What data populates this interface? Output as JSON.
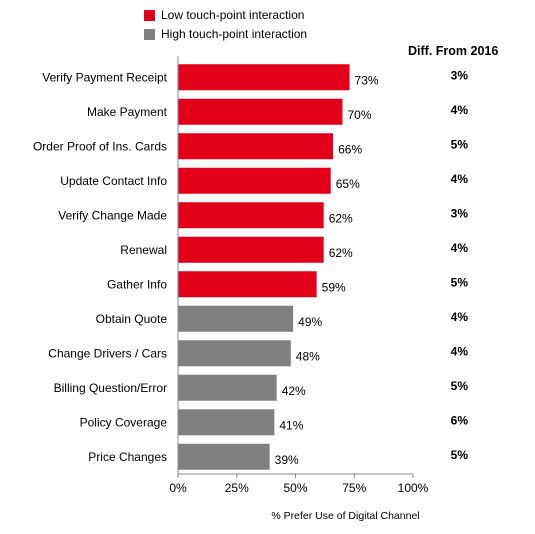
{
  "legend": [
    {
      "label": "Low touch-point interaction",
      "color": "#e3001b"
    },
    {
      "label": "High touch-point interaction",
      "color": "#808080"
    }
  ],
  "diff_header": "Diff. From 2016",
  "chart_data": {
    "type": "bar",
    "orientation": "horizontal",
    "categories": [
      "Verify Payment Receipt",
      "Make Payment",
      "Order Proof of Ins. Cards",
      "Update Contact Info",
      "Verify Change Made",
      "Renewal",
      "Gather Info",
      "Obtain Quote",
      "Change Drivers / Cars",
      "Billing Question/Error",
      "Policy Coverage",
      "Price Changes"
    ],
    "values": [
      73,
      70,
      66,
      65,
      62,
      62,
      59,
      49,
      48,
      42,
      41,
      39
    ],
    "value_labels": [
      "73%",
      "70%",
      "66%",
      "65%",
      "62%",
      "62%",
      "59%",
      "49%",
      "48%",
      "42%",
      "41%",
      "39%"
    ],
    "groups": [
      "Low touch-point interaction",
      "Low touch-point interaction",
      "Low touch-point interaction",
      "Low touch-point interaction",
      "Low touch-point interaction",
      "Low touch-point interaction",
      "Low touch-point interaction",
      "High touch-point interaction",
      "High touch-point interaction",
      "High touch-point interaction",
      "High touch-point interaction",
      "High touch-point interaction"
    ],
    "diff_from_2016": [
      "3%",
      "4%",
      "5%",
      "4%",
      "3%",
      "4%",
      "5%",
      "4%",
      "4%",
      "5%",
      "6%",
      "5%"
    ],
    "xlim": [
      0,
      100
    ],
    "xticks": [
      "0%",
      "25%",
      "50%",
      "75%",
      "100%"
    ],
    "xlabel": "% Prefer Use of Digital Channel",
    "ylabel": "",
    "title": "",
    "grid": false,
    "legend_position": "top"
  }
}
